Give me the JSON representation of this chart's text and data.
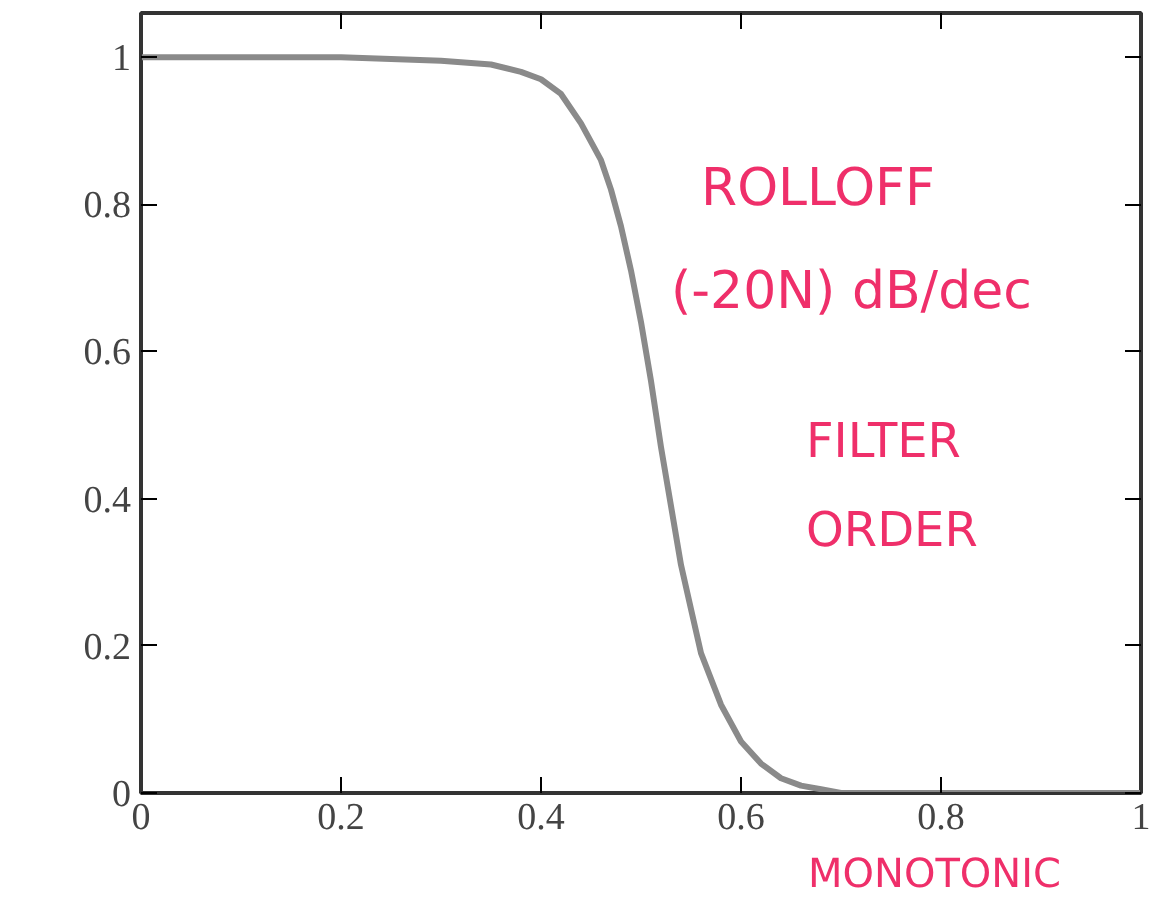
{
  "chart_data": {
    "type": "line",
    "x": [
      0,
      0.1,
      0.2,
      0.3,
      0.35,
      0.38,
      0.4,
      0.42,
      0.44,
      0.46,
      0.47,
      0.48,
      0.49,
      0.5,
      0.51,
      0.52,
      0.53,
      0.54,
      0.55,
      0.56,
      0.58,
      0.6,
      0.62,
      0.64,
      0.66,
      0.68,
      0.7,
      0.75,
      0.8,
      0.9,
      1
    ],
    "series": [
      {
        "color": "#8a8a8a",
        "values": [
          1,
          1,
          1,
          0.995,
          0.99,
          0.98,
          0.97,
          0.95,
          0.91,
          0.86,
          0.82,
          0.77,
          0.71,
          0.64,
          0.56,
          0.47,
          0.39,
          0.31,
          0.25,
          0.19,
          0.12,
          0.07,
          0.04,
          0.02,
          0.01,
          0.005,
          0,
          0,
          0,
          0,
          0
        ]
      }
    ],
    "xlim": [
      0,
      1
    ],
    "ylim": [
      0,
      1.06
    ],
    "xticks": [
      0,
      0.2,
      0.4,
      0.6,
      0.8,
      1
    ],
    "yticks": [
      0,
      0.2,
      0.4,
      0.6,
      0.8,
      1
    ],
    "grid": false,
    "marker": "none",
    "line_style": "solid",
    "annotations": [
      "ROLLOFF",
      "(-20N) dB/dec",
      "FILTER",
      "ORDER",
      "MONOTONIC"
    ]
  }
}
